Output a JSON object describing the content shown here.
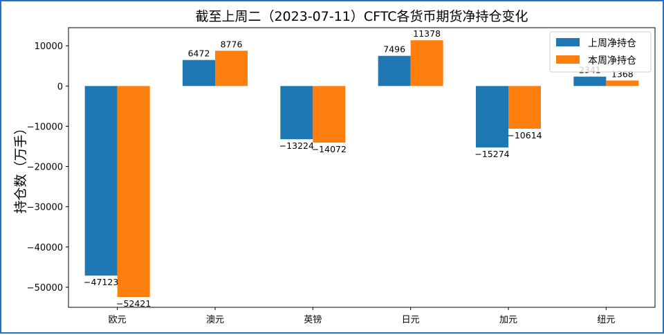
{
  "chart_data": {
    "type": "bar",
    "title": "截至上周二（2023-07-11）CFTC各货币期货净持仓变化",
    "xlabel": "",
    "ylabel": "持仓数（万手）",
    "categories": [
      "欧元",
      "澳元",
      "英镑",
      "日元",
      "加元",
      "纽元"
    ],
    "series": [
      {
        "name": "上周净持仓",
        "color": "#1f77b4",
        "values": [
          -47123,
          6472,
          -13224,
          7496,
          -15274,
          2341
        ]
      },
      {
        "name": "本周净持仓",
        "color": "#ff7f0e",
        "values": [
          -52421,
          8776,
          -14072,
          11378,
          -10614,
          1368
        ]
      }
    ],
    "ylim": [
      -55000,
      14500
    ],
    "yticks": [
      10000,
      0,
      -10000,
      -20000,
      -30000,
      -40000,
      -50000
    ],
    "ytick_labels": [
      "10000",
      "0",
      "−10000",
      "−20000",
      "−30000",
      "−40000",
      "−50000"
    ],
    "grid": false,
    "legend": "top-right"
  }
}
